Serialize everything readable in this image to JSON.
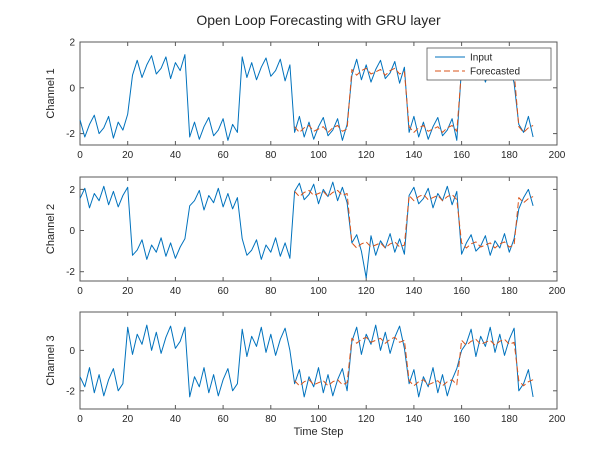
{
  "figure": {
    "title": "Open Loop Forecasting with GRU layer",
    "xlabel": "Time Step",
    "background": "#ffffff",
    "axis_color": "#595959",
    "input_color": "#0072BD",
    "forecast_color": "#D95319"
  },
  "chart_data": [
    {
      "type": "line",
      "ylabel": "Channel 1",
      "xlim": [
        0,
        200
      ],
      "ylim": [
        -2.5,
        2.0
      ],
      "xticks": [
        0,
        20,
        40,
        60,
        80,
        100,
        120,
        140,
        160,
        180,
        200
      ],
      "yticks": [
        -2,
        0,
        2
      ],
      "legend": true,
      "legend_position": "top-right",
      "grid": false,
      "series": [
        {
          "name": "Input",
          "color": "#0072BD",
          "dash": false,
          "x_start": 0,
          "x_step": 2,
          "values": [
            -1.4,
            -2.15,
            -1.6,
            -1.2,
            -2.0,
            -1.75,
            -1.25,
            -2.2,
            -1.5,
            -1.85,
            -1.15,
            0.55,
            1.2,
            0.45,
            1.0,
            1.4,
            0.6,
            0.85,
            1.35,
            0.4,
            1.1,
            0.75,
            1.45,
            -2.15,
            -1.5,
            -2.25,
            -1.7,
            -1.3,
            -2.1,
            -1.85,
            -1.35,
            -2.3,
            -1.6,
            -1.95,
            1.35,
            0.45,
            1.1,
            0.35,
            0.9,
            1.3,
            0.5,
            0.75,
            1.25,
            0.3,
            1.0,
            -1.95,
            -1.25,
            -2.15,
            -1.5,
            -2.25,
            -1.7,
            -1.3,
            -2.1,
            -1.85,
            -1.35,
            -2.3,
            -1.6,
            0.55,
            1.25,
            0.35,
            1.0,
            0.25,
            0.8,
            1.2,
            0.4,
            0.65,
            1.15,
            0.2,
            0.9,
            -1.95,
            -1.25,
            -2.15,
            -1.5,
            -2.25,
            -1.7,
            -1.3,
            -2.1,
            -1.85,
            -1.35,
            -2.3,
            0.9,
            0.55,
            1.25,
            0.35,
            1.0,
            0.25,
            0.8,
            1.2,
            0.4,
            0.65,
            1.15,
            0.2,
            -1.6,
            -1.95,
            -1.25,
            -2.15
          ]
        },
        {
          "name": "Forecasted",
          "color": "#D95319",
          "dash": true,
          "x_start": 90,
          "x_step": 2,
          "values": [
            -1.7,
            -1.95,
            -1.75,
            -1.65,
            -1.9,
            -1.8,
            -1.7,
            -1.95,
            -1.75,
            -1.65,
            -1.9,
            -1.8,
            0.8,
            0.55,
            0.75,
            0.85,
            0.6,
            0.7,
            0.8,
            0.55,
            0.75,
            0.85,
            0.6,
            0.7,
            -1.7,
            -1.95,
            -1.75,
            -1.65,
            -1.9,
            -1.8,
            -1.7,
            -1.95,
            -1.75,
            -1.65,
            -1.9,
            0.8,
            0.55,
            0.75,
            0.85,
            0.6,
            0.7,
            0.8,
            0.55,
            0.75,
            0.85,
            0.6,
            0.7,
            -1.7,
            -1.95,
            -1.75,
            -1.65
          ]
        }
      ]
    },
    {
      "type": "line",
      "ylabel": "Channel 2",
      "xlim": [
        0,
        200
      ],
      "ylim": [
        -2.45,
        2.6
      ],
      "xticks": [
        0,
        20,
        40,
        60,
        80,
        100,
        120,
        140,
        160,
        180,
        200
      ],
      "yticks": [
        -2,
        0,
        2
      ],
      "legend": false,
      "grid": false,
      "series": [
        {
          "name": "Input",
          "color": "#0072BD",
          "dash": false,
          "x_start": 0,
          "x_step": 2,
          "values": [
            1.55,
            2.05,
            1.1,
            1.8,
            1.45,
            2.15,
            1.25,
            1.9,
            1.15,
            1.7,
            2.1,
            -1.2,
            -0.95,
            -0.45,
            -1.4,
            -0.7,
            -1.05,
            -0.35,
            -1.25,
            -0.6,
            -1.35,
            -0.8,
            -0.4,
            1.2,
            1.45,
            1.95,
            1.0,
            1.7,
            1.35,
            2.05,
            1.15,
            1.8,
            1.05,
            1.6,
            -0.4,
            -1.2,
            -0.95,
            -0.45,
            -1.4,
            -0.7,
            -1.05,
            -0.35,
            -1.25,
            -0.6,
            -1.35,
            1.9,
            2.3,
            1.5,
            1.75,
            2.25,
            1.3,
            2.0,
            1.65,
            2.35,
            1.45,
            2.1,
            1.35,
            -0.6,
            -0.2,
            -1.0,
            -2.3,
            -0.25,
            -1.2,
            -0.5,
            -0.85,
            -0.15,
            -1.05,
            -0.4,
            -1.15,
            1.7,
            2.1,
            1.3,
            1.55,
            2.05,
            1.1,
            1.8,
            1.45,
            2.15,
            1.25,
            1.9,
            -1.15,
            -0.6,
            -0.2,
            -1.0,
            -0.75,
            -0.25,
            -1.2,
            -0.5,
            -0.85,
            -0.15,
            -1.05,
            -0.4,
            1.05,
            1.6,
            2.0,
            1.2
          ]
        },
        {
          "name": "Forecasted",
          "color": "#D95319",
          "dash": true,
          "x_start": 90,
          "x_step": 2,
          "values": [
            1.9,
            1.65,
            1.85,
            1.95,
            1.7,
            1.8,
            1.9,
            1.65,
            1.85,
            1.95,
            1.7,
            1.8,
            -0.6,
            -0.85,
            -0.65,
            -0.55,
            -0.8,
            -0.7,
            -0.6,
            -0.85,
            -0.65,
            -0.55,
            -0.8,
            -0.7,
            1.7,
            1.45,
            1.65,
            1.75,
            1.5,
            1.6,
            1.7,
            1.45,
            1.65,
            1.75,
            1.5,
            -0.6,
            -0.85,
            -0.65,
            -0.55,
            -0.8,
            -0.7,
            -0.6,
            -0.85,
            -0.65,
            -0.55,
            -0.8,
            -0.7,
            1.6,
            1.35,
            1.55,
            1.65
          ]
        }
      ]
    },
    {
      "type": "line",
      "ylabel": "Channel 3",
      "xlim": [
        0,
        200
      ],
      "ylim": [
        -2.9,
        1.9
      ],
      "xticks": [
        0,
        20,
        40,
        60,
        80,
        100,
        120,
        140,
        160,
        180,
        200
      ],
      "yticks": [
        -2,
        0
      ],
      "legend": false,
      "grid": false,
      "series": [
        {
          "name": "Input",
          "color": "#0072BD",
          "dash": false,
          "x_start": 0,
          "x_step": 2,
          "values": [
            -1.3,
            -1.8,
            -0.85,
            -2.1,
            -1.2,
            -2.25,
            -1.45,
            -0.9,
            -2.0,
            -1.65,
            1.15,
            -0.2,
            0.8,
            0.3,
            1.25,
            0.0,
            0.9,
            -0.15,
            0.65,
            1.2,
            0.1,
            0.45,
            1.15,
            -2.3,
            -1.3,
            -1.8,
            -0.85,
            -2.1,
            -1.2,
            -2.25,
            -1.45,
            -0.9,
            -2.0,
            -1.65,
            1.05,
            -0.3,
            0.7,
            0.2,
            1.15,
            -0.1,
            0.8,
            -0.25,
            0.55,
            1.1,
            0.0,
            -1.65,
            -0.95,
            -2.3,
            -1.3,
            -1.8,
            -0.85,
            -2.1,
            -1.2,
            -2.25,
            -1.45,
            -0.9,
            -2.0,
            0.45,
            1.15,
            -0.2,
            0.8,
            0.3,
            1.25,
            0.0,
            0.9,
            -0.15,
            0.65,
            1.2,
            0.1,
            -1.65,
            -0.95,
            -2.3,
            -1.3,
            -1.8,
            -0.85,
            -2.1,
            -1.2,
            -2.25,
            -1.45,
            -0.9,
            0.0,
            0.35,
            1.05,
            -0.3,
            0.7,
            0.2,
            1.15,
            -0.1,
            0.8,
            -0.25,
            0.55,
            1.1,
            -2.0,
            -1.65,
            -0.95,
            -2.3
          ]
        },
        {
          "name": "Forecasted",
          "color": "#D95319",
          "dash": true,
          "x_start": 90,
          "x_step": 2,
          "values": [
            -1.5,
            -1.75,
            -1.55,
            -1.45,
            -1.7,
            -1.6,
            -1.5,
            -1.75,
            -1.55,
            -1.45,
            -1.7,
            -1.6,
            0.6,
            0.35,
            0.55,
            0.65,
            0.4,
            0.5,
            0.6,
            0.35,
            0.55,
            0.65,
            0.4,
            0.5,
            -1.5,
            -1.75,
            -1.55,
            -1.45,
            -1.7,
            -1.6,
            -1.5,
            -1.75,
            -1.55,
            -1.45,
            -1.7,
            0.5,
            0.25,
            0.45,
            0.55,
            0.3,
            0.4,
            0.5,
            0.25,
            0.45,
            0.55,
            0.3,
            0.4,
            -1.5,
            -1.75,
            -1.55,
            -1.45
          ]
        }
      ]
    }
  ]
}
